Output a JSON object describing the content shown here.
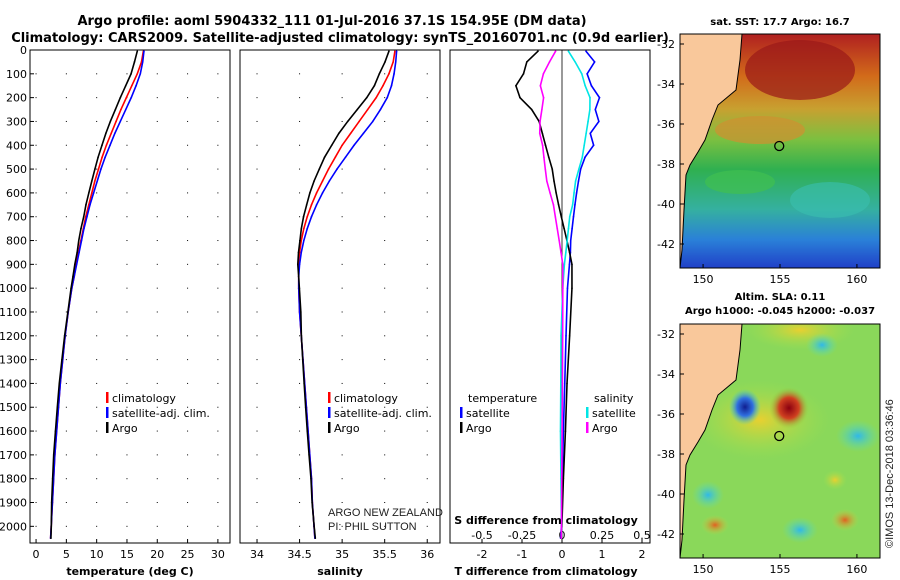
{
  "title_line1": "Argo profile: aoml 5904332_111 01-Jul-2016 37.1S 154.95E (DM data)",
  "title_line2": "Climatology: CARS2009. Satellite-adjusted climatology: synTS_20160701.nc (0.9d earlier)",
  "sst_title": "sat. SST: 17.7 Argo: 16.7",
  "sla_title1": "Altim. SLA: 0.11",
  "sla_title2": "Argo h1000: -0.045 h2000: -0.037",
  "imos_credit": "©IMOS 13-Dec-2018 03:36:46",
  "watermark1": "ARGO NEW ZEALAND",
  "watermark2": "PI: PHIL SUTTON",
  "colors": {
    "climatology": "#ff0000",
    "satellite": "#0000ff",
    "argo": "#000000",
    "sal_satellite": "#00e5e5",
    "sal_argo": "#ff00ff",
    "land": "#f9c89b"
  },
  "chart_data": [
    {
      "type": "line",
      "panel": "temperature",
      "xlabel": "temperature (deg C)",
      "ylabel": "depth",
      "xlim": [
        -1,
        32
      ],
      "ylim": [
        2070,
        0
      ],
      "xticks": [
        "0",
        "5",
        "10",
        "15",
        "20",
        "25",
        "30"
      ],
      "yticks": [
        "0",
        "100",
        "200",
        "300",
        "400",
        "500",
        "600",
        "700",
        "800",
        "900",
        "1000",
        "1100",
        "1200",
        "1300",
        "1400",
        "1500",
        "1600",
        "1700",
        "1800",
        "1900",
        "2000"
      ],
      "legend": [
        "climatology",
        "satellite-adj. clim.",
        "Argo"
      ],
      "series": [
        {
          "name": "climatology",
          "depth": [
            5,
            50,
            100,
            150,
            200,
            250,
            300,
            350,
            400,
            450,
            500,
            550,
            600,
            650,
            700,
            750,
            800,
            850,
            900,
            950,
            1000,
            1100,
            1200,
            1300,
            1400,
            1500,
            1600,
            1700,
            1800,
            1900,
            2000,
            2050
          ],
          "values": [
            17.7,
            17.4,
            16.7,
            15.8,
            14.9,
            14.0,
            13.2,
            12.4,
            11.6,
            10.9,
            10.3,
            9.7,
            9.2,
            8.7,
            8.2,
            7.8,
            7.4,
            7.0,
            6.6,
            6.3,
            5.9,
            5.3,
            4.8,
            4.4,
            4.0,
            3.7,
            3.4,
            3.1,
            2.9,
            2.7,
            2.5,
            2.4
          ]
        },
        {
          "name": "satellite-adj. clim.",
          "depth": [
            5,
            50,
            100,
            150,
            200,
            250,
            300,
            350,
            400,
            450,
            500,
            550,
            600,
            650,
            700,
            750,
            800,
            850,
            900,
            950,
            1000,
            1100,
            1200,
            1300,
            1400,
            1500,
            1600,
            1700,
            1800,
            1900,
            2000,
            2050
          ],
          "values": [
            17.8,
            17.6,
            17.2,
            16.5,
            15.7,
            14.8,
            13.9,
            13.0,
            12.2,
            11.4,
            10.7,
            10.1,
            9.5,
            8.9,
            8.4,
            7.9,
            7.5,
            7.1,
            6.7,
            6.3,
            5.9,
            5.3,
            4.8,
            4.4,
            4.0,
            3.7,
            3.4,
            3.1,
            2.9,
            2.7,
            2.5,
            2.4
          ]
        },
        {
          "name": "Argo",
          "depth": [
            5,
            50,
            100,
            150,
            200,
            250,
            300,
            350,
            400,
            450,
            500,
            550,
            600,
            650,
            700,
            750,
            800,
            850,
            900,
            950,
            1000,
            1100,
            1200,
            1300,
            1400,
            1500,
            1600,
            1700,
            1800,
            1900,
            2000,
            2050
          ],
          "values": [
            16.7,
            16.2,
            15.6,
            14.7,
            13.8,
            13.0,
            12.2,
            11.5,
            10.9,
            10.3,
            9.8,
            9.3,
            8.8,
            8.3,
            7.9,
            7.4,
            7.0,
            6.7,
            6.3,
            6.0,
            5.7,
            5.2,
            4.7,
            4.3,
            3.9,
            3.6,
            3.3,
            3.0,
            2.8,
            2.6,
            2.5,
            2.4
          ]
        }
      ]
    },
    {
      "type": "line",
      "panel": "salinity",
      "xlabel": "salinity",
      "xlim": [
        33.8,
        36.15
      ],
      "ylim": [
        2070,
        0
      ],
      "xticks": [
        "34",
        "34.5",
        "35",
        "35.5",
        "36"
      ],
      "legend": [
        "climatology",
        "satellite-adj. clim.",
        "Argo"
      ],
      "series": [
        {
          "name": "climatology",
          "depth": [
            5,
            50,
            100,
            150,
            200,
            250,
            300,
            350,
            400,
            450,
            500,
            550,
            600,
            650,
            700,
            750,
            800,
            850,
            900,
            950,
            1000,
            1100,
            1200,
            1300,
            1400,
            1500,
            1600,
            1700,
            1800,
            1900,
            2000,
            2050
          ],
          "values": [
            35.62,
            35.6,
            35.55,
            35.48,
            35.4,
            35.3,
            35.2,
            35.1,
            35.0,
            34.92,
            34.84,
            34.77,
            34.7,
            34.64,
            34.59,
            34.55,
            34.52,
            34.5,
            34.49,
            34.49,
            34.49,
            34.5,
            34.52,
            34.54,
            34.56,
            34.58,
            34.6,
            34.62,
            34.64,
            34.65,
            34.67,
            34.68
          ]
        },
        {
          "name": "satellite-adj. clim.",
          "depth": [
            5,
            50,
            100,
            150,
            200,
            250,
            300,
            350,
            400,
            450,
            500,
            550,
            600,
            650,
            700,
            750,
            800,
            850,
            900,
            950,
            1000,
            1100,
            1200,
            1300,
            1400,
            1500,
            1600,
            1700,
            1800,
            1900,
            2000,
            2050
          ],
          "values": [
            35.64,
            35.63,
            35.61,
            35.58,
            35.53,
            35.45,
            35.36,
            35.25,
            35.14,
            35.04,
            34.94,
            34.85,
            34.77,
            34.7,
            34.64,
            34.59,
            34.55,
            34.52,
            34.5,
            34.49,
            34.49,
            34.5,
            34.52,
            34.54,
            34.56,
            34.58,
            34.6,
            34.62,
            34.64,
            34.65,
            34.67,
            34.68
          ]
        },
        {
          "name": "Argo",
          "depth": [
            5,
            50,
            100,
            150,
            200,
            250,
            300,
            350,
            400,
            450,
            500,
            550,
            600,
            650,
            700,
            750,
            800,
            850,
            900,
            950,
            1000,
            1100,
            1200,
            1300,
            1400,
            1500,
            1600,
            1700,
            1800,
            1900,
            2000,
            2050
          ],
          "values": [
            35.55,
            35.5,
            35.43,
            35.37,
            35.28,
            35.17,
            35.06,
            34.96,
            34.88,
            34.8,
            34.74,
            34.68,
            34.63,
            34.59,
            34.55,
            34.52,
            34.5,
            34.48,
            34.47,
            34.48,
            34.49,
            34.51,
            34.52,
            34.54,
            34.56,
            34.58,
            34.6,
            34.62,
            34.64,
            34.65,
            34.67,
            34.68
          ]
        }
      ]
    },
    {
      "type": "line",
      "panel": "difference",
      "xlabel": "T difference from climatology",
      "xlabel_top": "S difference from climatology",
      "xlim": [
        -2.8,
        2.2
      ],
      "ylim": [
        2070,
        0
      ],
      "xticks": [
        "-2",
        "-1",
        "0",
        "1",
        "2"
      ],
      "xticks_top": [
        "-0.5",
        "-0.25",
        "0",
        "0.25",
        "0.5"
      ],
      "legend_left_title": "temperature",
      "legend_left": [
        "satellite",
        "Argo"
      ],
      "legend_right_title": "salinity",
      "legend_right": [
        "satellite",
        "Argo"
      ],
      "series": [
        {
          "name": "T satellite",
          "depth": [
            5,
            50,
            100,
            150,
            200,
            250,
            300,
            350,
            400,
            450,
            500,
            550,
            600,
            650,
            700,
            750,
            800,
            850,
            900,
            1000,
            1200,
            1400,
            1600,
            1800,
            2000,
            2050
          ],
          "values": [
            0.6,
            0.8,
            0.6,
            0.7,
            0.9,
            0.8,
            0.9,
            0.7,
            0.8,
            0.6,
            0.5,
            0.45,
            0.4,
            0.35,
            0.3,
            0.25,
            0.2,
            0.18,
            0.15,
            0.1,
            0.07,
            0.05,
            0.03,
            0.02,
            0.01,
            0.0
          ]
        },
        {
          "name": "T Argo",
          "depth": [
            5,
            50,
            100,
            150,
            200,
            250,
            300,
            350,
            400,
            450,
            500,
            550,
            600,
            650,
            700,
            750,
            800,
            850,
            900,
            1000,
            1200,
            1400,
            1600,
            1800,
            2000,
            2050
          ],
          "values": [
            -0.6,
            -0.9,
            -1.0,
            -1.2,
            -1.1,
            -0.8,
            -0.6,
            -0.5,
            -0.4,
            -0.3,
            -0.2,
            -0.15,
            -0.1,
            -0.05,
            0.0,
            0.05,
            0.1,
            0.15,
            0.2,
            0.2,
            0.15,
            0.1,
            0.08,
            0.05,
            0.03,
            0.02
          ]
        },
        {
          "name": "S satellite",
          "depth": [
            5,
            50,
            100,
            150,
            200,
            250,
            300,
            350,
            400,
            450,
            500,
            550,
            600,
            650,
            700,
            750,
            800,
            850,
            900,
            1000,
            1200,
            1400,
            1600,
            1800,
            2000,
            2050
          ],
          "values": [
            0.04,
            0.08,
            0.12,
            0.14,
            0.17,
            0.17,
            0.16,
            0.15,
            0.14,
            0.13,
            0.11,
            0.09,
            0.08,
            0.07,
            0.05,
            0.04,
            0.03,
            0.02,
            0.01,
            0.0,
            -0.01,
            -0.01,
            -0.01,
            -0.005,
            0.0,
            0.0
          ]
        },
        {
          "name": "S Argo",
          "depth": [
            5,
            50,
            100,
            150,
            200,
            250,
            300,
            350,
            400,
            450,
            500,
            550,
            600,
            650,
            700,
            750,
            800,
            850,
            900,
            1000,
            1200,
            1400,
            1600,
            1800,
            2000,
            2050
          ],
          "values": [
            -0.04,
            -0.08,
            -0.12,
            -0.14,
            -0.12,
            -0.13,
            -0.14,
            -0.14,
            -0.12,
            -0.11,
            -0.1,
            -0.09,
            -0.07,
            -0.05,
            -0.04,
            -0.03,
            -0.02,
            -0.01,
            0.0,
            0.0,
            0.0,
            0.0,
            0.0,
            0.0,
            0.0,
            0.0
          ]
        }
      ]
    },
    {
      "type": "heatmap",
      "panel": "sst_map",
      "title": "sat. SST: 17.7 Argo: 16.7",
      "xticks": [
        "150",
        "155",
        "160"
      ],
      "yticks": [
        "-32",
        "-34",
        "-36",
        "-38",
        "-40",
        "-42"
      ],
      "xlim": [
        148.5,
        161.5
      ],
      "ylim": [
        -43.2,
        -31.5
      ],
      "argo_position": [
        154.95,
        -37.1
      ]
    },
    {
      "type": "heatmap",
      "panel": "sla_map",
      "title": "Altim. SLA: 0.11",
      "xticks": [
        "150",
        "155",
        "160"
      ],
      "yticks": [
        "-32",
        "-34",
        "-36",
        "-38",
        "-40",
        "-42"
      ],
      "xlim": [
        148.5,
        161.5
      ],
      "ylim": [
        -43.2,
        -31.5
      ],
      "argo_position": [
        154.95,
        -37.1
      ]
    }
  ]
}
